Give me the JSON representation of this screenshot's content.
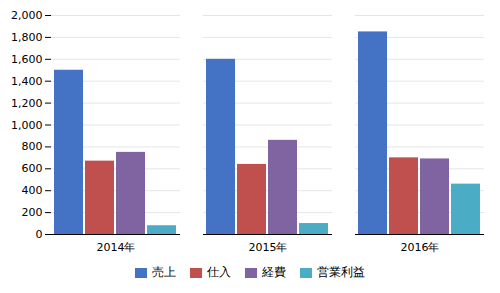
{
  "chart_data": {
    "type": "bar",
    "categories": [
      "2014年",
      "2015年",
      "2016年"
    ],
    "series": [
      {
        "name": "売上",
        "color": "#4472C4",
        "values": [
          1500,
          1600,
          1850
        ]
      },
      {
        "name": "仕入",
        "color": "#C0504D",
        "values": [
          670,
          640,
          700
        ]
      },
      {
        "name": "経費",
        "color": "#8064A2",
        "values": [
          750,
          860,
          690
        ]
      },
      {
        "name": "営業利益",
        "color": "#4BACC6",
        "values": [
          80,
          100,
          460
        ]
      }
    ],
    "ylim": [
      0,
      2000
    ],
    "yticks": [
      0,
      200,
      400,
      600,
      800,
      {
        "value": 1000,
        "label": "1,000"
      },
      {
        "value": 1200,
        "label": "1,200"
      },
      {
        "value": 1400,
        "label": "1,400"
      },
      {
        "value": 1600,
        "label": "1,600"
      },
      {
        "value": 1800,
        "label": "1,800"
      },
      {
        "value": 2000,
        "label": "2,000"
      }
    ],
    "grid": true,
    "legend": "bottom"
  }
}
